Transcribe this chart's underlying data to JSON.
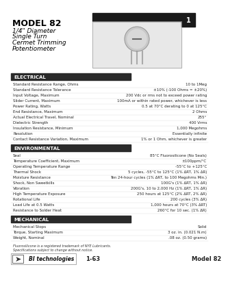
{
  "title_model": "MODEL 82",
  "title_line1": "1/4\" Diameter",
  "title_line2": "Single Turn",
  "title_line3": "Cermet Trimming",
  "title_line4": "Potentiometer",
  "page_number": "1",
  "bg_color": "#f0f0f0",
  "section_electrical": "ELECTRICAL",
  "electrical_rows": [
    [
      "Standard Resistance Range, Ohms",
      "10 to 1Meg"
    ],
    [
      "Standard Resistance Tolerance",
      "±10% (-100 Ohms = ±20%)"
    ],
    [
      "Input Voltage, Maximum",
      "200 Vdc or rms not to exceed power rating"
    ],
    [
      "Slider Current, Maximum",
      "100mA or within rated power, whichever is less"
    ],
    [
      "Power Rating, Watts",
      "0.5 at 70°C derating to 0 at 125°C"
    ],
    [
      "End Resistance, Maximum",
      "2 Ohms"
    ],
    [
      "Actual Electrical Travel, Nominal",
      "255°"
    ],
    [
      "Dielectric Strength",
      "400 Vrms"
    ],
    [
      "Insulation Resistance, Minimum",
      "1,000 Megohms"
    ],
    [
      "Resolution",
      "Essentially infinite"
    ],
    [
      "Contact Resistance Variation, Maximum",
      "1% or 1 Ohm, whichever is greater"
    ]
  ],
  "section_environmental": "ENVIRONMENTAL",
  "environmental_rows": [
    [
      "Seal",
      "85°C Fluorosilicone (No Seals)"
    ],
    [
      "Temperature Coefficient, Maximum",
      "±100ppm/°C"
    ],
    [
      "Operating Temperature Range",
      "-55°C to +125°C"
    ],
    [
      "Thermal Shock",
      "5 cycles, -55°C to 125°C (1% ΔRT, 1% ΔR)"
    ],
    [
      "Moisture Resistance",
      "Ten 24-hour cycles (1% ΔRT, to 100 Megohms Min.)"
    ],
    [
      "Shock, Non Sweetkills",
      "100G's (1% ΔRT, 1% ΔR)"
    ],
    [
      "Vibration",
      "200G's, 10 to 2,000 Hz (1% ΔRT, 1% ΔR)"
    ],
    [
      "High Temperature Exposure",
      "250 hours at 125°C (2% ΔRT, 2% ΔR)"
    ],
    [
      "Rotational Life",
      "200 cycles (3% ΔR)"
    ],
    [
      "Load Life at 0.5 Watts",
      "1,000 hours at 70°C (3% ΔRT)"
    ],
    [
      "Resistance to Solder Heat",
      "260°C for 10 sec. (1% ΔR)"
    ]
  ],
  "section_mechanical": "MECHANICAL",
  "mechanical_rows": [
    [
      "Mechanical Stops",
      "Solid"
    ],
    [
      "Torque, Starting Maximum",
      "3 oz. in. (0.021 N.m)"
    ],
    [
      "Weight, Nominal",
      ".08 oz. (0.50 grams)"
    ]
  ],
  "footer_note1": "Fluorosilicone is a registered trademark of NYE Lubricants.",
  "footer_note2": "Specifications subject to change without notice.",
  "footer_page": "1-63",
  "footer_model": "Model 82"
}
